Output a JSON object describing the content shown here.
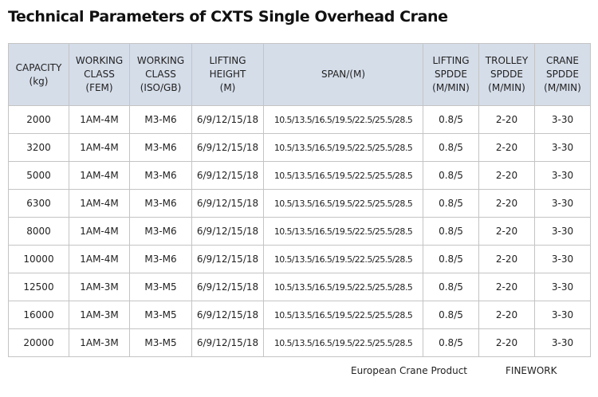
{
  "title": "Technical Parameters of CXTS Single Overhead Crane",
  "table": {
    "headers": [
      [
        "CAPACITY",
        "(kg)"
      ],
      [
        "WORKING",
        "CLASS",
        "(FEM)"
      ],
      [
        "WORKING",
        "CLASS",
        "(ISO/GB)"
      ],
      [
        "LIFTING",
        "HEIGHT",
        "(M)"
      ],
      [
        "SPAN/(M)"
      ],
      [
        "LIFTING",
        "SPDDE",
        "(M/MIN)"
      ],
      [
        "TROLLEY",
        "SPDDE",
        "(M/MIN)"
      ],
      [
        "CRANE",
        "SPDDE",
        "(M/MIN)"
      ]
    ],
    "rows": [
      [
        "2000",
        "1AM-4M",
        "M3-M6",
        "6/9/12/15/18",
        "10.5/13.5/16.5/19.5/22.5/25.5/28.5",
        "0.8/5",
        "2-20",
        "3-30"
      ],
      [
        "3200",
        "1AM-4M",
        "M3-M6",
        "6/9/12/15/18",
        "10.5/13.5/16.5/19.5/22.5/25.5/28.5",
        "0.8/5",
        "2-20",
        "3-30"
      ],
      [
        "5000",
        "1AM-4M",
        "M3-M6",
        "6/9/12/15/18",
        "10.5/13.5/16.5/19.5/22.5/25.5/28.5",
        "0.8/5",
        "2-20",
        "3-30"
      ],
      [
        "6300",
        "1AM-4M",
        "M3-M6",
        "6/9/12/15/18",
        "10.5/13.5/16.5/19.5/22.5/25.5/28.5",
        "0.8/5",
        "2-20",
        "3-30"
      ],
      [
        "8000",
        "1AM-4M",
        "M3-M6",
        "6/9/12/15/18",
        "10.5/13.5/16.5/19.5/22.5/25.5/28.5",
        "0.8/5",
        "2-20",
        "3-30"
      ],
      [
        "10000",
        "1AM-4M",
        "M3-M6",
        "6/9/12/15/18",
        "10.5/13.5/16.5/19.5/22.5/25.5/28.5",
        "0.8/5",
        "2-20",
        "3-30"
      ],
      [
        "12500",
        "1AM-3M",
        "M3-M5",
        "6/9/12/15/18",
        "10.5/13.5/16.5/19.5/22.5/25.5/28.5",
        "0.8/5",
        "2-20",
        "3-30"
      ],
      [
        "16000",
        "1AM-3M",
        "M3-M5",
        "6/9/12/15/18",
        "10.5/13.5/16.5/19.5/22.5/25.5/28.5",
        "0.8/5",
        "2-20",
        "3-30"
      ],
      [
        "20000",
        "1AM-3M",
        "M3-M5",
        "6/9/12/15/18",
        "10.5/13.5/16.5/19.5/22.5/25.5/28.5",
        "0.8/5",
        "2-20",
        "3-30"
      ]
    ]
  },
  "footer": {
    "product": "European Crane Product",
    "brand": "FINEWORK"
  }
}
